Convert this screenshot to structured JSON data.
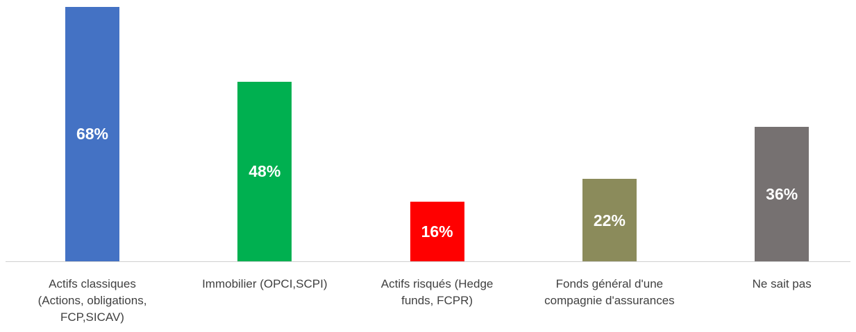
{
  "chart_data": {
    "type": "bar",
    "categories": [
      "Actifs classiques\n(Actions, obligations,\nFCP,SICAV)",
      "Immobilier (OPCI,SCPI)",
      "Actifs risqués (Hedge\nfunds, FCPR)",
      "Fonds général d'une\ncompagnie d'assurances",
      "Ne sait pas"
    ],
    "values": [
      68,
      48,
      16,
      22,
      36
    ],
    "value_labels": [
      "68%",
      "48%",
      "16%",
      "22%",
      "36%"
    ],
    "colors": [
      "#4472c4",
      "#00b050",
      "#ff0000",
      "#8b8b5b",
      "#767171"
    ]
  }
}
